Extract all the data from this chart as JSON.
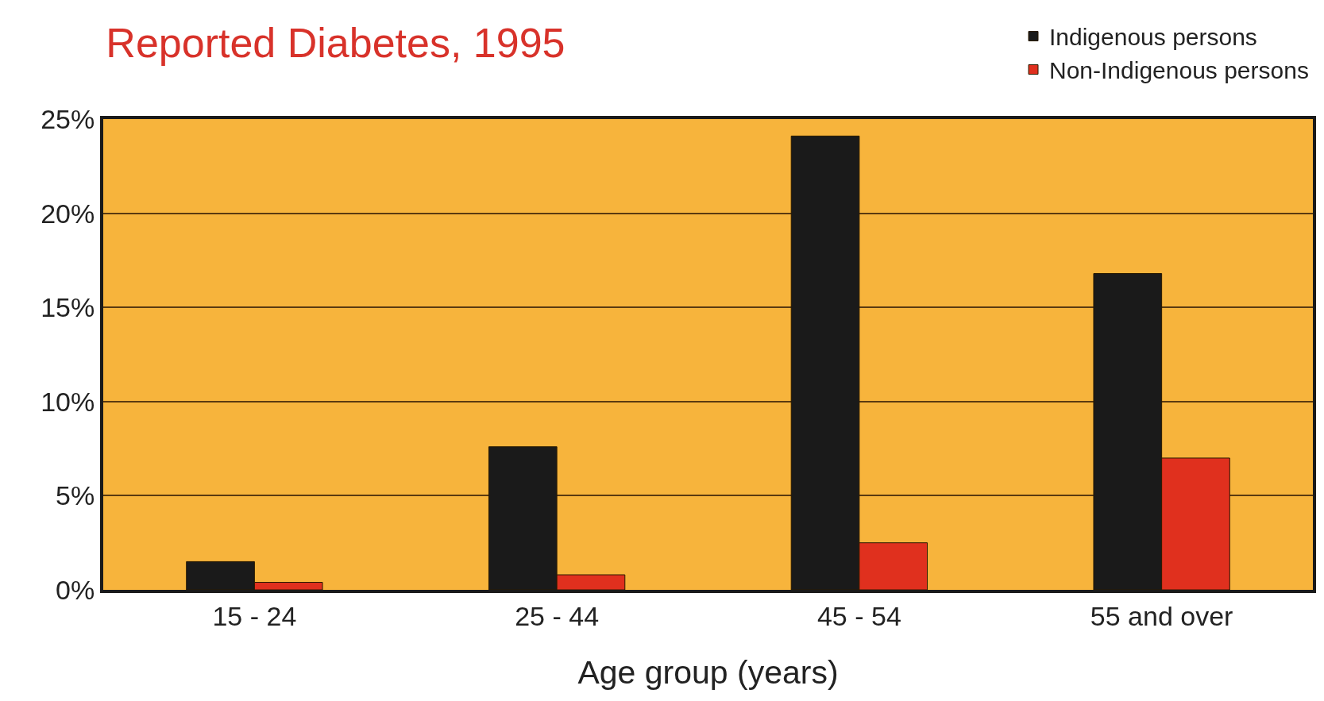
{
  "chart_data": {
    "type": "bar",
    "title": "Reported Diabetes, 1995",
    "xlabel": "Age group (years)",
    "categories": [
      "15 - 24",
      "25 - 44",
      "45 - 54",
      "55 and over"
    ],
    "series": [
      {
        "name": "Indigenous persons",
        "color": "#1a1a1a",
        "values": [
          1.5,
          7.6,
          24.1,
          16.8
        ]
      },
      {
        "name": "Non-Indigenous persons",
        "color": "#e0301e",
        "values": [
          0.4,
          0.8,
          2.5,
          7.0
        ]
      }
    ],
    "ylim": [
      0,
      25
    ],
    "yticks": [
      {
        "value": 0,
        "label": "0%"
      },
      {
        "value": 5,
        "label": "5%"
      },
      {
        "value": 10,
        "label": "10%"
      },
      {
        "value": 15,
        "label": "15%"
      },
      {
        "value": 20,
        "label": "20%"
      },
      {
        "value": 25,
        "label": "25%"
      }
    ],
    "grid": "y",
    "legend": "top right"
  }
}
